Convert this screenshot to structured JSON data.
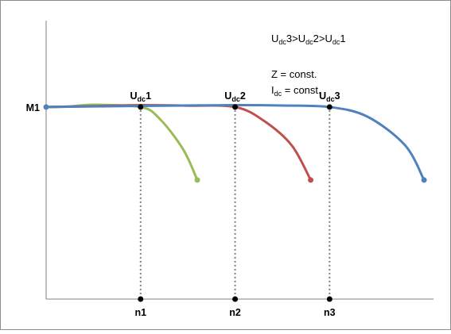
{
  "chart_data": {
    "type": "line",
    "title": "",
    "xlabel": "",
    "ylabel": "",
    "y_tick_label": "M1",
    "x_tick_labels": [
      "n1",
      "n2",
      "n3"
    ],
    "annotations": {
      "relation": {
        "parts": [
          "U",
          "dc",
          "3>U",
          "dc",
          "2>U",
          "dc",
          "1"
        ]
      },
      "constants": [
        {
          "parts": [
            "Z = const."
          ]
        },
        {
          "parts": [
            "I",
            "dc",
            " = const."
          ]
        }
      ]
    },
    "colors": {
      "udc1": "#9bbb59",
      "udc2": "#c0504d",
      "udc3": "#4f81bd",
      "markers": "#000000",
      "guides": "#7f7f7f"
    },
    "series": [
      {
        "name_parts": [
          "U",
          "dc",
          "1"
        ],
        "color": "#9bbb59",
        "x": [
          0,
          0.25,
          0.5,
          1.0,
          1.2,
          1.45,
          1.6
        ],
        "y": [
          1.0,
          1.003,
          1.012,
          1.0,
          0.94,
          0.78,
          0.62
        ]
      },
      {
        "name_parts": [
          "U",
          "dc",
          "2"
        ],
        "color": "#c0504d",
        "x": [
          0,
          0.5,
          1.0,
          1.5,
          2.0,
          2.3,
          2.6,
          2.8
        ],
        "y": [
          1.0,
          1.005,
          1.01,
          1.007,
          1.0,
          0.93,
          0.8,
          0.62
        ]
      },
      {
        "name_parts": [
          "U",
          "dc",
          "3"
        ],
        "color": "#4f81bd",
        "x": [
          0,
          1.0,
          2.0,
          2.5,
          3.0,
          3.4,
          3.8,
          4.0
        ],
        "y": [
          1.0,
          1.006,
          1.01,
          1.008,
          1.0,
          0.95,
          0.8,
          0.62
        ]
      }
    ],
    "breakpoints": [
      {
        "x": 1.0,
        "y": 1.0,
        "label_parts": [
          "U",
          "dc",
          "1"
        ],
        "tick": "n1"
      },
      {
        "x": 2.0,
        "y": 1.0,
        "label_parts": [
          "U",
          "dc",
          "2"
        ],
        "tick": "n2"
      },
      {
        "x": 3.0,
        "y": 1.0,
        "label_parts": [
          "U",
          "dc",
          "3"
        ],
        "tick": "n3"
      }
    ],
    "xlim": [
      0,
      4.1
    ],
    "ylim": [
      0,
      1.45
    ],
    "grid": false,
    "legend": "none"
  }
}
